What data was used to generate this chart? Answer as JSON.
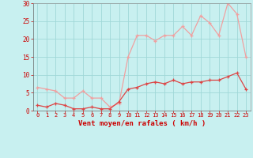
{
  "x": [
    0,
    1,
    2,
    3,
    4,
    5,
    6,
    7,
    8,
    9,
    10,
    11,
    12,
    13,
    14,
    15,
    16,
    17,
    18,
    19,
    20,
    21,
    22,
    23
  ],
  "vent_moyen": [
    1.5,
    1.0,
    2.0,
    1.5,
    0.5,
    0.5,
    1.0,
    0.5,
    0.5,
    2.5,
    6.0,
    6.5,
    7.5,
    8.0,
    7.5,
    8.5,
    7.5,
    8.0,
    8.0,
    8.5,
    8.5,
    9.5,
    10.5,
    6.0
  ],
  "rafales": [
    6.5,
    6.0,
    5.5,
    3.5,
    3.5,
    5.5,
    3.5,
    3.5,
    1.0,
    2.0,
    15.0,
    21.0,
    21.0,
    19.5,
    21.0,
    21.0,
    23.5,
    21.0,
    26.5,
    24.5,
    21.0,
    30.0,
    27.0,
    15.0
  ],
  "xlabel": "Vent moyen/en rafales ( km/h )",
  "ylim": [
    0,
    30
  ],
  "yticks": [
    0,
    5,
    10,
    15,
    20,
    25,
    30
  ],
  "xticks": [
    0,
    1,
    2,
    3,
    4,
    5,
    6,
    7,
    8,
    9,
    10,
    11,
    12,
    13,
    14,
    15,
    16,
    17,
    18,
    19,
    20,
    21,
    22,
    23
  ],
  "bg_color": "#c8f0f0",
  "grid_color": "#a0d8d8",
  "line_color_moyen": "#dd4444",
  "line_color_rafales": "#f0a0a0",
  "label_color": "#cc0000",
  "tick_color": "#cc0000"
}
